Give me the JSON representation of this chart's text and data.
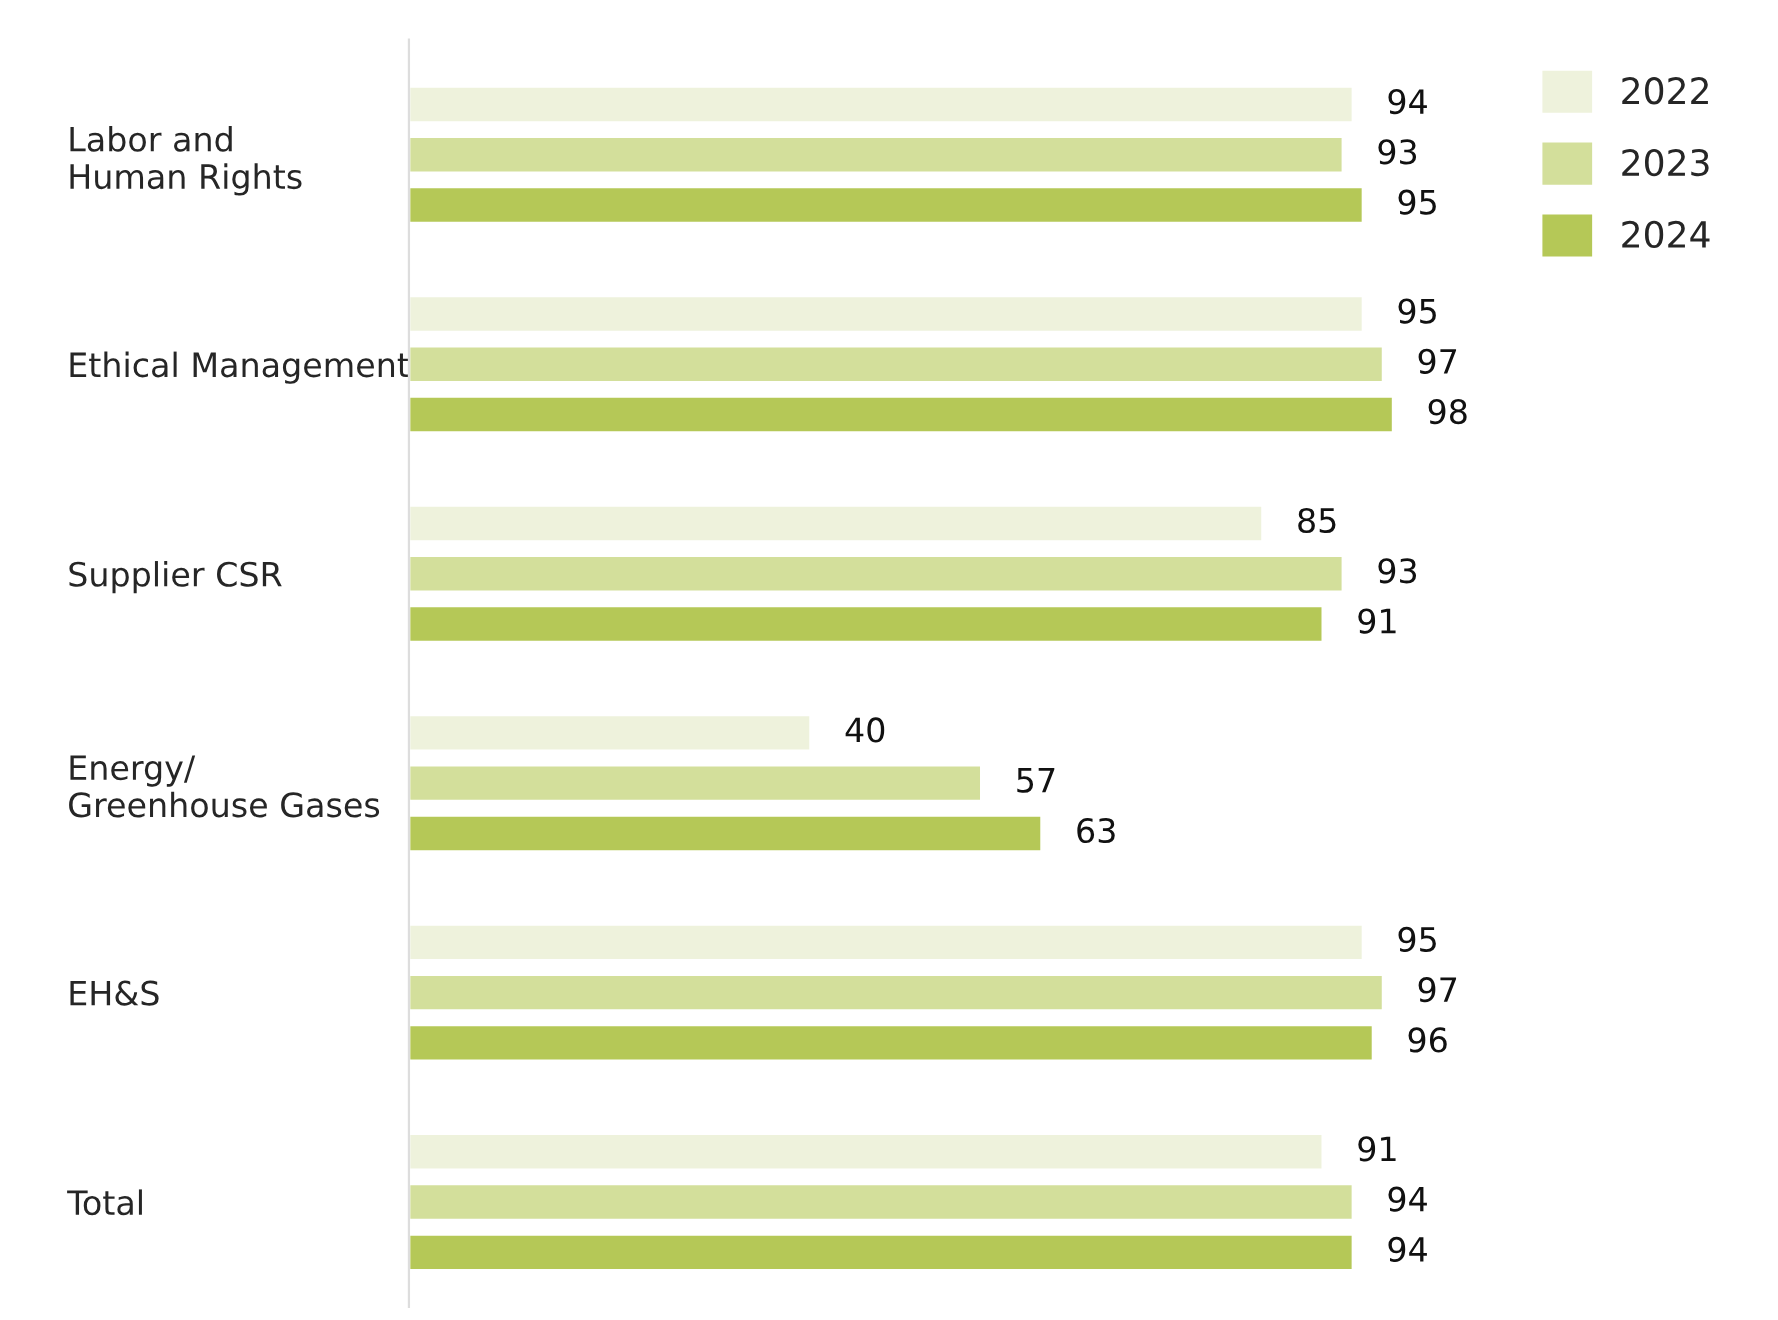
{
  "chart_data": {
    "type": "bar",
    "orientation": "horizontal",
    "data_labels": true,
    "legend": "top right",
    "grid": false,
    "categories": [
      "Labor and\nHuman Rights",
      "Ethical Management",
      "Supplier CSR",
      "Energy/\nGreenhouse Gases",
      "EH&S",
      "Total"
    ],
    "series": [
      {
        "name": "2022",
        "color": "#eef2dc",
        "values": [
          94,
          95,
          85,
          40,
          95,
          91
        ]
      },
      {
        "name": "2023",
        "color": "#d3df9b",
        "values": [
          93,
          97,
          93,
          57,
          97,
          94
        ]
      },
      {
        "name": "2024",
        "color": "#b5c857",
        "values": [
          95,
          98,
          91,
          63,
          96,
          94
        ]
      }
    ]
  }
}
